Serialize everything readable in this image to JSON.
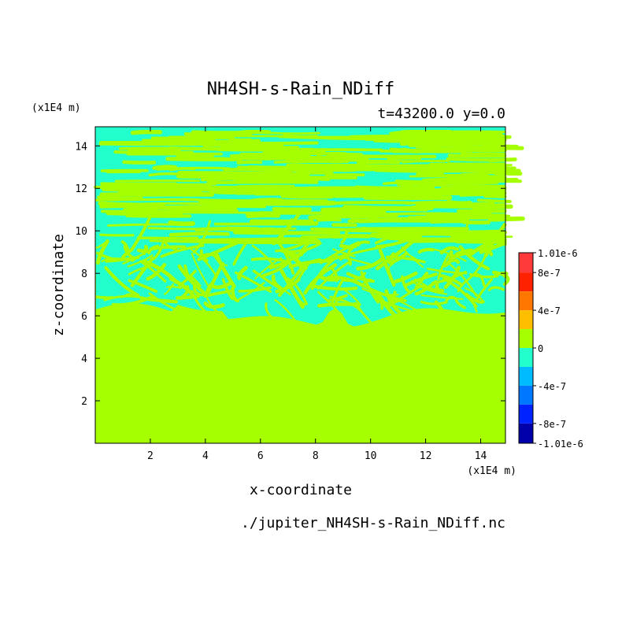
{
  "chart_data": {
    "type": "heatmap",
    "title": "NH4SH-s-Rain_NDiff",
    "subtitle": "t=43200.0 y=0.0",
    "xlabel": "x-coordinate",
    "ylabel": "z-coordinate",
    "x_unit": "(x1E4 m)",
    "y_unit": "(x1E4 m)",
    "xlim": [
      0,
      14.9
    ],
    "ylim": [
      0,
      14.9
    ],
    "x_ticks": [
      2,
      4,
      6,
      8,
      10,
      12,
      14
    ],
    "y_ticks": [
      2,
      4,
      6,
      8,
      10,
      12,
      14
    ],
    "colorbar": {
      "range": [
        -1.01e-06,
        1.01e-06
      ],
      "labels": [
        "1.01e-6",
        "8e-7",
        "4e-7",
        "0",
        "-4e-7",
        "-8e-7",
        "-1.01e-6"
      ],
      "label_values": [
        1.01e-06,
        8e-07,
        4e-07,
        0,
        -4e-07,
        -8e-07,
        -1.01e-06
      ],
      "bins": [
        {
          "from": 8e-07,
          "to": 1.01e-06,
          "color": "#ff3a3a"
        },
        {
          "from": 6e-07,
          "to": 8e-07,
          "color": "#ff2200"
        },
        {
          "from": 4e-07,
          "to": 6e-07,
          "color": "#ff7700"
        },
        {
          "from": 2e-07,
          "to": 4e-07,
          "color": "#ffbf00"
        },
        {
          "from": 0,
          "to": 2e-07,
          "color": "#a6ff00"
        },
        {
          "from": -2e-07,
          "to": 0,
          "color": "#22ffcc"
        },
        {
          "from": -4e-07,
          "to": -2e-07,
          "color": "#00bbff"
        },
        {
          "from": -6e-07,
          "to": -4e-07,
          "color": "#0077ff"
        },
        {
          "from": -8e-07,
          "to": -6e-07,
          "color": "#0022ff"
        },
        {
          "from": -1.01e-06,
          "to": -8e-07,
          "color": "#0000aa"
        }
      ]
    },
    "field": {
      "uniform_value_below_z": 6.0,
      "uniform_value": 0,
      "upper_region_values": [
        0,
        -2e-07
      ],
      "description_colors": {
        "zero": "#a6ff00",
        "slight_negative": "#22ffcc"
      }
    }
  },
  "footer": {
    "file": "./jupiter_NH4SH-s-Rain_NDiff.nc"
  }
}
